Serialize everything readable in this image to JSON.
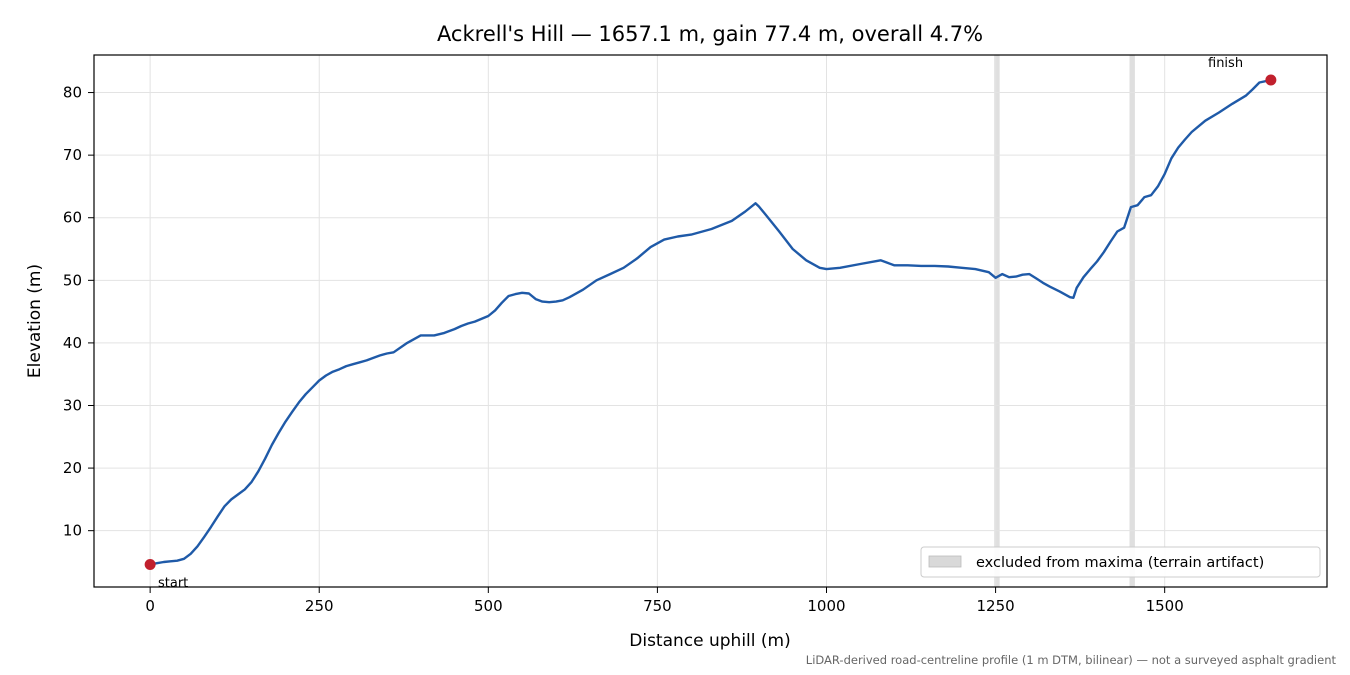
{
  "chart_data": {
    "type": "line",
    "title": "Ackrell's Hill — 1657.1 m, gain 77.4 m, overall 4.7%",
    "xlabel": "Distance uphill (m)",
    "ylabel": "Elevation (m)",
    "xlim": [
      -83,
      1740
    ],
    "ylim": [
      1,
      86
    ],
    "xticks": [
      0,
      250,
      500,
      750,
      1000,
      1250,
      1500
    ],
    "yticks": [
      10,
      20,
      30,
      40,
      50,
      60,
      70,
      80
    ],
    "grid": true,
    "legend_placement": "bottom-right",
    "legend_label": "excluded from maxima (terrain artifact)",
    "excluded_ranges": [
      [
        1248,
        1256
      ],
      [
        1448,
        1456
      ]
    ],
    "line_color": "#1f5aa8",
    "marker_color": "#c1202d",
    "band_color": "#d9d9d9",
    "annotations": {
      "start": "start",
      "finish": "finish"
    },
    "series": [
      {
        "x": [
          0,
          10,
          20,
          30,
          40,
          50,
          60,
          70,
          80,
          90,
          100,
          110,
          120,
          130,
          140,
          150,
          160,
          170,
          180,
          190,
          200,
          210,
          220,
          230,
          240,
          250,
          260,
          270,
          280,
          290,
          300,
          310,
          320,
          330,
          340,
          350,
          360,
          380,
          400,
          420,
          435,
          440,
          450,
          460,
          470,
          480,
          500,
          510,
          520,
          530,
          540,
          550,
          560,
          570,
          580,
          590,
          600,
          610,
          620,
          640,
          660,
          680,
          700,
          720,
          740,
          760,
          780,
          800,
          830,
          860,
          880,
          895,
          900,
          910,
          930,
          950,
          970,
          990,
          1000,
          1020,
          1050,
          1075,
          1080,
          1090,
          1100,
          1120,
          1140,
          1160,
          1180,
          1200,
          1220,
          1240,
          1250,
          1260,
          1270,
          1280,
          1290,
          1300,
          1310,
          1320,
          1330,
          1345,
          1360,
          1365,
          1370,
          1380,
          1390,
          1400,
          1410,
          1420,
          1430,
          1440,
          1450,
          1460,
          1470,
          1480,
          1490,
          1500,
          1510,
          1520,
          1530,
          1540,
          1560,
          1580,
          1600,
          1620,
          1630,
          1640,
          1657
        ],
        "y": [
          4.6,
          4.8,
          5.0,
          5.1,
          5.2,
          5.5,
          6.3,
          7.5,
          9.0,
          10.6,
          12.3,
          13.9,
          15.0,
          15.8,
          16.6,
          17.8,
          19.5,
          21.5,
          23.7,
          25.6,
          27.4,
          29.0,
          30.5,
          31.8,
          32.9,
          34.0,
          34.8,
          35.4,
          35.8,
          36.3,
          36.6,
          36.9,
          37.2,
          37.6,
          38.0,
          38.3,
          38.5,
          40.0,
          41.2,
          41.2,
          41.6,
          41.8,
          42.2,
          42.7,
          43.1,
          43.4,
          44.3,
          45.2,
          46.4,
          47.5,
          47.8,
          48.0,
          47.9,
          47.0,
          46.6,
          46.5,
          46.6,
          46.8,
          47.3,
          48.5,
          50.0,
          51.0,
          52.0,
          53.5,
          55.3,
          56.5,
          57.0,
          57.3,
          58.2,
          59.5,
          61.0,
          62.3,
          61.8,
          60.5,
          57.8,
          55.0,
          53.2,
          52.0,
          51.8,
          52.0,
          52.6,
          53.1,
          53.2,
          52.8,
          52.4,
          52.4,
          52.3,
          52.3,
          52.2,
          52.0,
          51.8,
          51.3,
          50.4,
          51.0,
          50.5,
          50.6,
          50.9,
          51.0,
          50.3,
          49.6,
          49.0,
          48.2,
          47.3,
          47.2,
          48.8,
          50.5,
          51.8,
          53.0,
          54.5,
          56.2,
          57.8,
          58.4,
          61.7,
          62.0,
          63.3,
          63.6,
          65.0,
          67.0,
          69.5,
          71.2,
          72.5,
          73.7,
          75.5,
          76.8,
          78.2,
          79.5,
          80.5,
          81.6,
          82.0
        ]
      }
    ],
    "footnote": "LiDAR-derived road-centreline profile (1 m DTM, bilinear) — not a surveyed asphalt gradient"
  }
}
